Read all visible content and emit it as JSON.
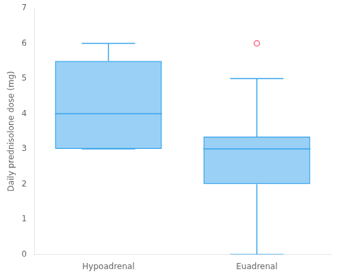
{
  "chart_data": {
    "type": "box",
    "categories": [
      "Hypoadrenal",
      "Euadrenal"
    ],
    "boxes": [
      {
        "whislo": 3.0,
        "q1": 3.0,
        "med": 4.0,
        "q3": 5.5,
        "whishi": 6.0,
        "fliers": []
      },
      {
        "whislo": 0.0,
        "q1": 2.0,
        "med": 3.0,
        "q3": 3.35,
        "whishi": 5.0,
        "fliers": [
          6.0
        ]
      }
    ],
    "ylabel": "Daily prednisolone dose (mg)",
    "ylim": [
      0,
      7
    ],
    "yticks": [
      0,
      1,
      2,
      3,
      4,
      5,
      6,
      7
    ],
    "grid": false
  }
}
